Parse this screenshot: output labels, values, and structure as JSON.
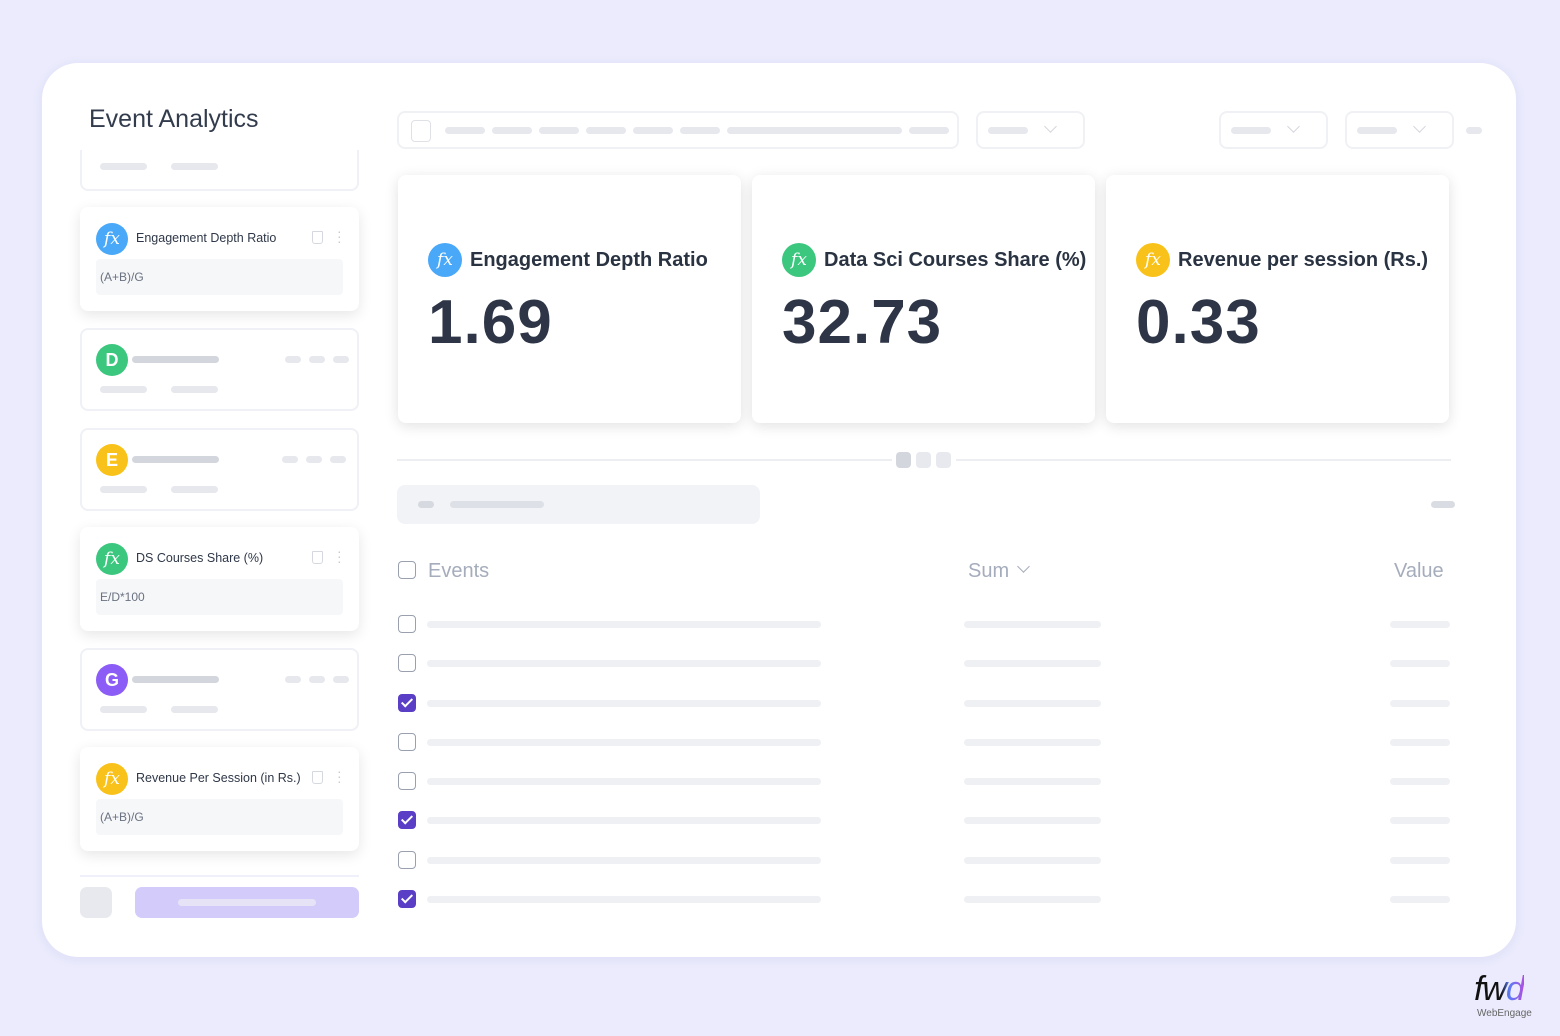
{
  "page": {
    "title": "Event Analytics"
  },
  "sidebar": {
    "formulas": [
      {
        "name": "Engagement Depth Ratio",
        "formula": "(A+B)/G",
        "color": "#4aa8f8",
        "icon": "fx-icon"
      },
      {
        "name": "DS Courses Share (%)",
        "formula": "E/D*100",
        "color": "#3cc77f",
        "icon": "fx-icon"
      },
      {
        "name": "Revenue Per Session (in Rs.)",
        "formula": "(A+B)/G",
        "color": "#f9c21a",
        "icon": "fx-icon"
      }
    ],
    "events": [
      {
        "letter": "D",
        "color": "#3cc77f"
      },
      {
        "letter": "E",
        "color": "#f9c21a"
      },
      {
        "letter": "G",
        "color": "#8b5cf6"
      }
    ],
    "fx_glyph": "fx"
  },
  "metrics": [
    {
      "label": "Engagement Depth Ratio",
      "value": "1.69",
      "color": "#4aa8f8"
    },
    {
      "label": "Data Sci Courses Share (%)",
      "value": "32.73",
      "color": "#3cc77f"
    },
    {
      "label": "Revenue per session (Rs.)",
      "value": "0.33",
      "color": "#f9c21a"
    }
  ],
  "table": {
    "columns": {
      "events": "Events",
      "sum": "Sum",
      "value": "Value"
    },
    "rows_checked": [
      false,
      false,
      true,
      false,
      false,
      true,
      false,
      true
    ]
  },
  "brand": {
    "logo": "fwd",
    "sub": "WebEngage"
  },
  "colors": {
    "accent": "#5a3fc6",
    "background": "#ebebfd"
  }
}
